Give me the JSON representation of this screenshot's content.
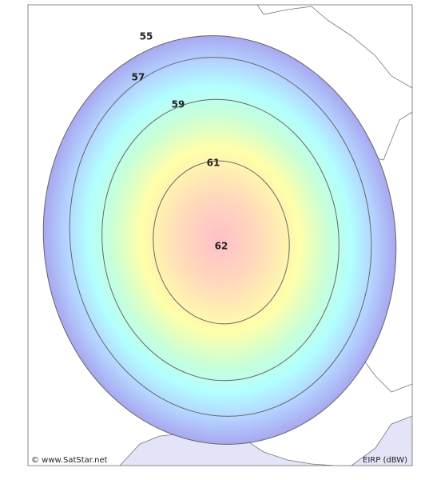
{
  "levels": [
    55,
    57,
    59,
    61,
    62
  ],
  "footer": {
    "copyright": "© www.SatStar.net",
    "unit": "EIRP (dBW)"
  }
}
